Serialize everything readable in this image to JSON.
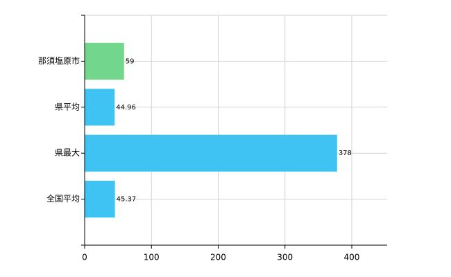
{
  "chart_data": {
    "type": "bar",
    "orientation": "horizontal",
    "categories": [
      "那須塩原市",
      "県平均",
      "県最大",
      "全国平均"
    ],
    "values": [
      59,
      44.96,
      378,
      45.37
    ],
    "colors": [
      "#72d68c",
      "#3ec3f3",
      "#3ec3f3",
      "#3ec3f3"
    ],
    "xlim": [
      0,
      453
    ],
    "xticks": [
      0,
      100,
      200,
      300,
      400
    ],
    "grid": true
  }
}
